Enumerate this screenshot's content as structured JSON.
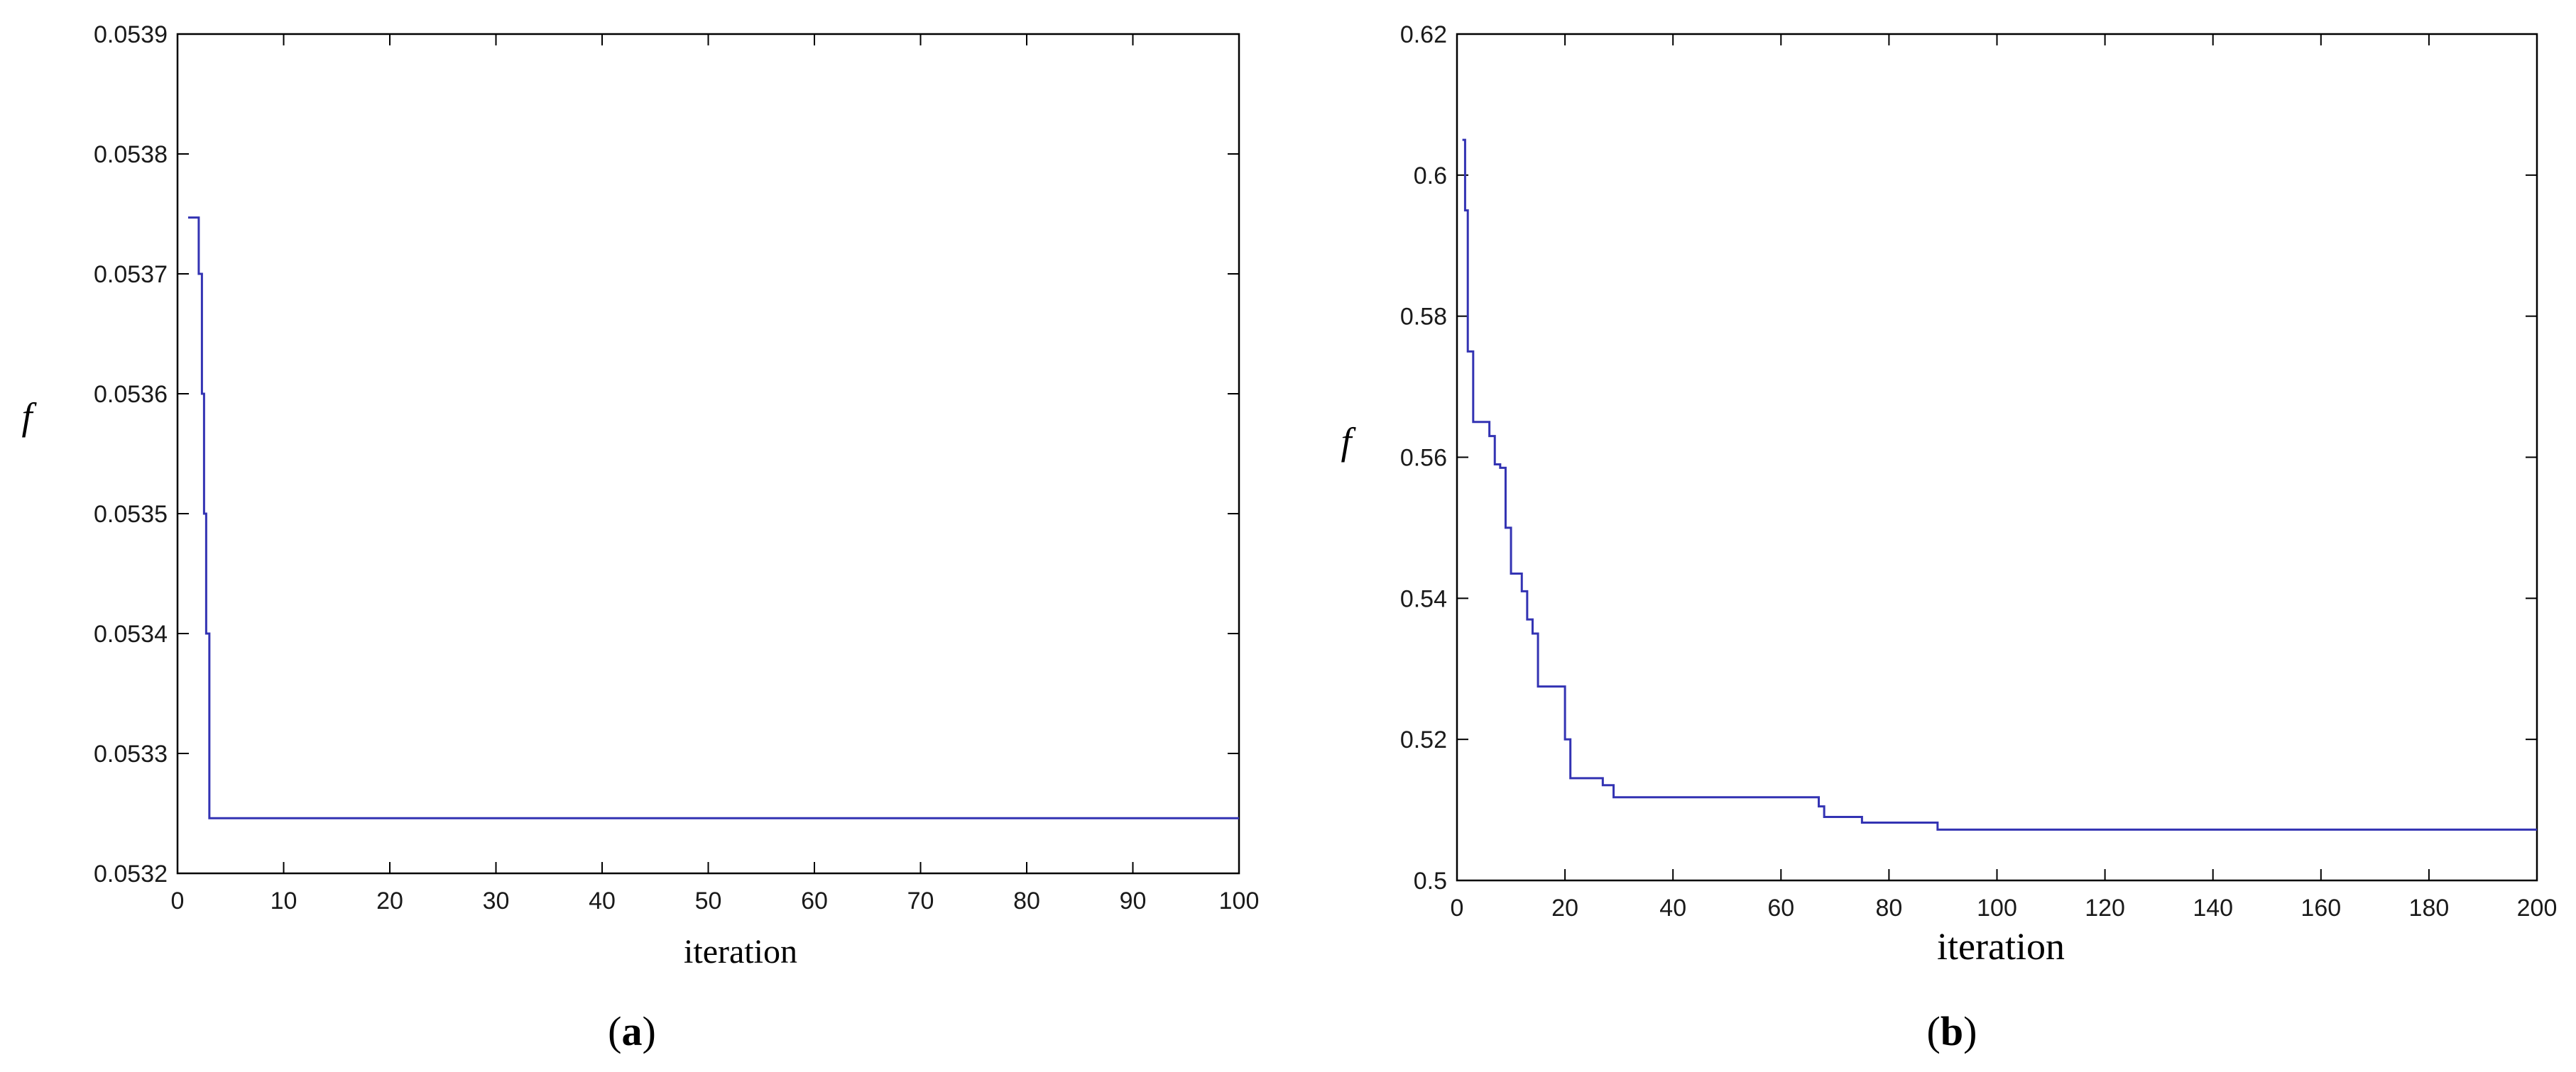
{
  "chart_data": [
    {
      "type": "line",
      "panel_label": "a",
      "xlabel": "iteration",
      "ylabel": "f",
      "xlim": [
        0,
        100
      ],
      "ylim": [
        0.0532,
        0.0539
      ],
      "xticks": [
        0,
        10,
        20,
        30,
        40,
        50,
        60,
        70,
        80,
        90,
        100
      ],
      "yticks": [
        "0.0532",
        "0.0533",
        "0.0534",
        "0.0535",
        "0.0536",
        "0.0537",
        "0.0538",
        "0.0539"
      ],
      "grid": false,
      "color": "#3333b3",
      "series": [
        {
          "x": [
            1,
            2,
            2,
            2.3,
            2.3,
            2.5,
            2.5,
            2.7,
            2.7,
            3,
            3,
            100
          ],
          "y": [
            0.053747,
            0.053747,
            0.0537,
            0.0537,
            0.0536,
            0.0536,
            0.0535,
            0.0535,
            0.0534,
            0.0534,
            0.053246,
            0.053246
          ]
        }
      ]
    },
    {
      "type": "line",
      "panel_label": "b",
      "xlabel": "iteration",
      "ylabel": "f",
      "xlim": [
        0,
        200
      ],
      "ylim": [
        0.5,
        0.62
      ],
      "xticks": [
        0,
        20,
        40,
        60,
        80,
        100,
        120,
        140,
        160,
        180,
        200
      ],
      "yticks": [
        "0.5",
        "0.52",
        "0.54",
        "0.56",
        "0.58",
        "0.6",
        "0.62"
      ],
      "grid": false,
      "color": "#3333b3",
      "series": [
        {
          "x": [
            1,
            1.5,
            1.5,
            2,
            2,
            3,
            3,
            6,
            6,
            7,
            7,
            8,
            8,
            9,
            9,
            10,
            10,
            12,
            12,
            13,
            13,
            14,
            14,
            15,
            15,
            20,
            20,
            21,
            21,
            27,
            27,
            29,
            29,
            67,
            67,
            68,
            68,
            75,
            75,
            89,
            89,
            200
          ],
          "y": [
            0.605,
            0.605,
            0.595,
            0.595,
            0.575,
            0.575,
            0.565,
            0.565,
            0.563,
            0.563,
            0.559,
            0.559,
            0.5585,
            0.5585,
            0.55,
            0.55,
            0.5435,
            0.5435,
            0.541,
            0.541,
            0.537,
            0.537,
            0.535,
            0.535,
            0.5275,
            0.5275,
            0.52,
            0.52,
            0.5145,
            0.5145,
            0.5135,
            0.5135,
            0.5118,
            0.5118,
            0.5105,
            0.5105,
            0.509,
            0.509,
            0.5082,
            0.5082,
            0.5072,
            0.5072
          ]
        }
      ]
    }
  ]
}
